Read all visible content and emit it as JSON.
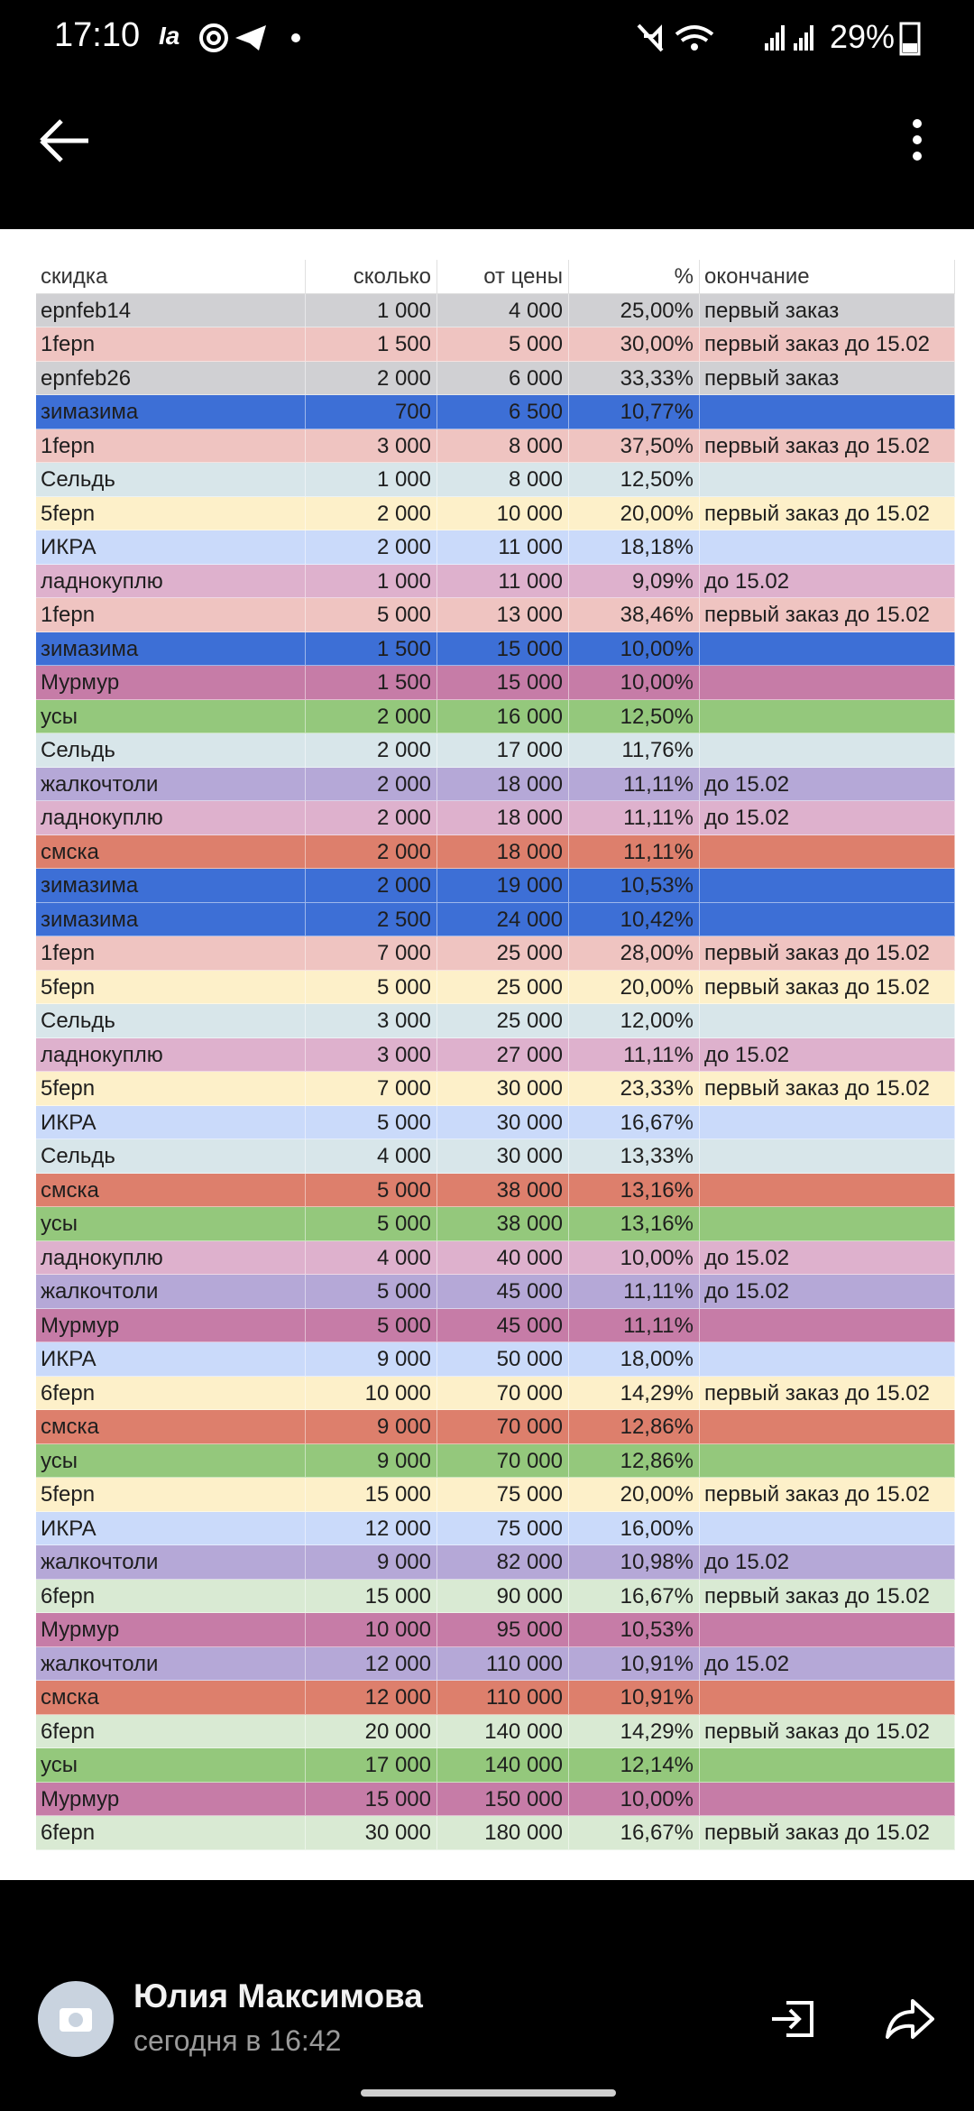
{
  "status_bar": {
    "time": "17:10",
    "app_hint": "Ia",
    "battery": "29%"
  },
  "table": {
    "header": [
      "скидка",
      "сколько",
      "от цены",
      "%",
      "окончание"
    ],
    "rows": [
      {
        "color": "#d0d0d3",
        "cells": [
          "epnfeb14",
          "1 000",
          "4 000",
          "25,00%",
          "первый заказ"
        ]
      },
      {
        "color": "#efc4c1",
        "cells": [
          "1fepn",
          "1 500",
          "5 000",
          "30,00%",
          "первый заказ до 15.02"
        ]
      },
      {
        "color": "#d0d0d3",
        "cells": [
          "epnfeb26",
          "2 000",
          "6 000",
          "33,33%",
          "первый заказ"
        ]
      },
      {
        "color": "#3d6fd6",
        "cells": [
          "зимазима",
          "700",
          "6 500",
          "10,77%"
        ]
      },
      {
        "color": "#efc4c1",
        "cells": [
          "1fepn",
          "3 000",
          "8 000",
          "37,50%",
          "первый заказ до 15.02"
        ]
      },
      {
        "color": "#d8e6ea",
        "cells": [
          "Сельдь",
          "1 000",
          "8 000",
          "12,50%"
        ]
      },
      {
        "color": "#fdf0c9",
        "cells": [
          "5fepn",
          "2 000",
          "10 000",
          "20,00%",
          "первый заказ до 15.02"
        ]
      },
      {
        "color": "#cadafa",
        "cells": [
          "ИКРА",
          "2 000",
          "11 000",
          "18,18%"
        ]
      },
      {
        "color": "#deb1cd",
        "cells": [
          "ладнокуплю",
          "1 000",
          "11 000",
          "9,09%",
          "до 15.02"
        ]
      },
      {
        "color": "#efc4c1",
        "cells": [
          "1fepn",
          "5 000",
          "13 000",
          "38,46%",
          "первый заказ до 15.02"
        ]
      },
      {
        "color": "#3d6fd6",
        "cells": [
          "зимазима",
          "1 500",
          "15 000",
          "10,00%"
        ]
      },
      {
        "color": "#c67ca7",
        "cells": [
          "Мурмур",
          "1 500",
          "15 000",
          "10,00%"
        ]
      },
      {
        "color": "#94c87c",
        "cells": [
          "усы",
          "2 000",
          "16 000",
          "12,50%"
        ]
      },
      {
        "color": "#d8e6ea",
        "cells": [
          "Сельдь",
          "2 000",
          "17 000",
          "11,76%"
        ]
      },
      {
        "color": "#b5a8d7",
        "cells": [
          "жалкочтоли",
          "2 000",
          "18 000",
          "11,11%",
          "до 15.02"
        ]
      },
      {
        "color": "#deb1cd",
        "cells": [
          "ладнокуплю",
          "2 000",
          "18 000",
          "11,11%",
          "до 15.02"
        ]
      },
      {
        "color": "#dd7f6c",
        "cells": [
          "смска",
          "2 000",
          "18 000",
          "11,11%"
        ]
      },
      {
        "color": "#3d6fd6",
        "cells": [
          "зимазима",
          "2 000",
          "19 000",
          "10,53%"
        ]
      },
      {
        "color": "#3d6fd6",
        "cells": [
          "зимазима",
          "2 500",
          "24 000",
          "10,42%"
        ]
      },
      {
        "color": "#efc4c1",
        "cells": [
          "1fepn",
          "7 000",
          "25 000",
          "28,00%",
          "первый заказ до 15.02"
        ]
      },
      {
        "color": "#fdf0c9",
        "cells": [
          "5fepn",
          "5 000",
          "25 000",
          "20,00%",
          "первый заказ до 15.02"
        ]
      },
      {
        "color": "#d8e6ea",
        "cells": [
          "Сельдь",
          "3 000",
          "25 000",
          "12,00%"
        ]
      },
      {
        "color": "#deb1cd",
        "cells": [
          "ладнокуплю",
          "3 000",
          "27 000",
          "11,11%",
          "до 15.02"
        ]
      },
      {
        "color": "#fdf0c9",
        "cells": [
          "5fepn",
          "7 000",
          "30 000",
          "23,33%",
          "первый заказ до 15.02"
        ]
      },
      {
        "color": "#cadafa",
        "cells": [
          "ИКРА",
          "5 000",
          "30 000",
          "16,67%"
        ]
      },
      {
        "color": "#d8e6ea",
        "cells": [
          "Сельдь",
          "4 000",
          "30 000",
          "13,33%"
        ]
      },
      {
        "color": "#dd7f6c",
        "cells": [
          "смска",
          "5 000",
          "38 000",
          "13,16%"
        ]
      },
      {
        "color": "#94c87c",
        "cells": [
          "усы",
          "5 000",
          "38 000",
          "13,16%"
        ]
      },
      {
        "color": "#deb1cd",
        "cells": [
          "ладнокуплю",
          "4 000",
          "40 000",
          "10,00%",
          "до 15.02"
        ]
      },
      {
        "color": "#b5a8d7",
        "cells": [
          "жалкочтоли",
          "5 000",
          "45 000",
          "11,11%",
          "до 15.02"
        ]
      },
      {
        "color": "#c67ca7",
        "cells": [
          "Мурмур",
          "5 000",
          "45 000",
          "11,11%"
        ]
      },
      {
        "color": "#cadafa",
        "cells": [
          "ИКРА",
          "9 000",
          "50 000",
          "18,00%"
        ]
      },
      {
        "color": "#fdf0c9",
        "cells": [
          "6fepn",
          "10 000",
          "70 000",
          "14,29%",
          "первый заказ до 15.02"
        ]
      },
      {
        "color": "#dd7f6c",
        "cells": [
          "смска",
          "9 000",
          "70 000",
          "12,86%"
        ]
      },
      {
        "color": "#94c87c",
        "cells": [
          "усы",
          "9 000",
          "70 000",
          "12,86%"
        ]
      },
      {
        "color": "#fdf0c9",
        "cells": [
          "5fepn",
          "15 000",
          "75 000",
          "20,00%",
          "первый заказ до 15.02"
        ]
      },
      {
        "color": "#cadafa",
        "cells": [
          "ИКРА",
          "12 000",
          "75 000",
          "16,00%"
        ]
      },
      {
        "color": "#b5a8d7",
        "cells": [
          "жалкочтоли",
          "9 000",
          "82 000",
          "10,98%",
          "до 15.02"
        ]
      },
      {
        "color": "#d9ead3",
        "cells": [
          "6fepn",
          "15 000",
          "90 000",
          "16,67%",
          "первый заказ до 15.02"
        ]
      },
      {
        "color": "#c67ca7",
        "cells": [
          "Мурмур",
          "10 000",
          "95 000",
          "10,53%"
        ]
      },
      {
        "color": "#b5a8d7",
        "cells": [
          "жалкочтоли",
          "12 000",
          "110 000",
          "10,91%",
          "до 15.02"
        ]
      },
      {
        "color": "#dd7f6c",
        "cells": [
          "смска",
          "12 000",
          "110 000",
          "10,91%"
        ]
      },
      {
        "color": "#d9ead3",
        "cells": [
          "6fepn",
          "20 000",
          "140 000",
          "14,29%",
          "первый заказ до 15.02"
        ]
      },
      {
        "color": "#94c87c",
        "cells": [
          "усы",
          "17 000",
          "140 000",
          "12,14%"
        ]
      },
      {
        "color": "#c67ca7",
        "cells": [
          "Мурмур",
          "15 000",
          "150 000",
          "10,00%"
        ]
      },
      {
        "color": "#d9ead3",
        "cells": [
          "6fepn",
          "30 000",
          "180 000",
          "16,67%",
          "первый заказ до 15.02"
        ]
      }
    ]
  },
  "footer": {
    "sender": "Юлия Максимова",
    "time": "сегодня в 16:42"
  }
}
